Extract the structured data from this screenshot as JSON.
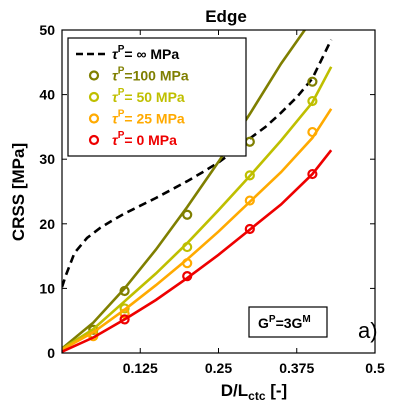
{
  "chart_data": {
    "type": "line",
    "title": "Edge",
    "xlabel": "D/L",
    "xlabel_sub": "ctc",
    "xlabel_unit": " [-]",
    "ylabel": "CRSS [MPa]",
    "xlim": [
      0.0,
      0.5
    ],
    "ylim": [
      0,
      50
    ],
    "xticks": [
      0.125,
      0.25,
      0.375,
      0.5
    ],
    "xtick_labels": [
      "0.125",
      "0.25",
      "0.375",
      "0.5"
    ],
    "yticks": [
      0,
      10,
      20,
      30,
      40,
      50
    ],
    "ytick_labels": [
      "0",
      "10",
      "20",
      "30",
      "40",
      "50"
    ],
    "grid": false,
    "legend_position": "top-left",
    "panel_label": "a)",
    "annotation": {
      "base": "G",
      "sup1": "P",
      "mid": "=3G",
      "sup2": "M"
    },
    "series": [
      {
        "name": "∞ MPa",
        "label_prefix": "τ",
        "label_sup": "P",
        "label_rest": "=  ∞ MPa",
        "color": "#000000",
        "style": "dashed",
        "curve_x": [
          0.0,
          0.006,
          0.02,
          0.04,
          0.06,
          0.08,
          0.1,
          0.125,
          0.15,
          0.175,
          0.2,
          0.225,
          0.25,
          0.275,
          0.3,
          0.325,
          0.35,
          0.375,
          0.4,
          0.43
        ],
        "curve_y": [
          10.2,
          12.0,
          15.5,
          17.8,
          19.3,
          20.5,
          21.6,
          22.8,
          24.0,
          25.3,
          26.6,
          28.0,
          29.5,
          31.3,
          33.2,
          35.0,
          37.2,
          39.6,
          42.5,
          48.5
        ],
        "points_x": [],
        "points_y": []
      },
      {
        "name": "100 MPa",
        "label_prefix": "τ",
        "label_sup": "P",
        "label_rest": "=100 MPa",
        "color": "#7f7f00",
        "style": "solid",
        "curve_x": [
          0.0,
          0.05,
          0.1,
          0.15,
          0.2,
          0.25,
          0.3,
          0.35,
          0.395
        ],
        "curve_y": [
          0.7,
          4.7,
          10.0,
          16.0,
          22.6,
          29.6,
          37.0,
          44.8,
          51.0
        ],
        "points_x": [
          0.05,
          0.1,
          0.2,
          0.3,
          0.4
        ],
        "points_y": [
          3.6,
          9.6,
          21.4,
          32.7,
          42.0
        ]
      },
      {
        "name": "50 MPa",
        "label_prefix": "τ",
        "label_sup": "P",
        "label_rest": "=  50 MPa",
        "color": "#bfbf00",
        "style": "solid",
        "curve_x": [
          0.0,
          0.05,
          0.1,
          0.15,
          0.2,
          0.25,
          0.3,
          0.35,
          0.4,
          0.43
        ],
        "curve_y": [
          0.6,
          3.7,
          8.0,
          12.3,
          17.0,
          22.1,
          27.4,
          32.9,
          38.8,
          44.3
        ],
        "points_x": [
          0.05,
          0.1,
          0.2,
          0.3,
          0.4
        ],
        "points_y": [
          3.0,
          6.9,
          16.4,
          27.5,
          39.0
        ]
      },
      {
        "name": "25 MPa",
        "label_prefix": "τ",
        "label_sup": "P",
        "label_rest": "=  25 MPa",
        "color": "#ffaa00",
        "style": "solid",
        "curve_x": [
          0.0,
          0.05,
          0.1,
          0.15,
          0.2,
          0.25,
          0.3,
          0.35,
          0.4,
          0.43
        ],
        "curve_y": [
          0.5,
          3.2,
          6.7,
          10.5,
          14.5,
          18.8,
          23.4,
          28.0,
          33.3,
          37.8
        ],
        "points_x": [
          0.05,
          0.1,
          0.2,
          0.3,
          0.4
        ],
        "points_y": [
          2.6,
          6.1,
          13.9,
          23.6,
          34.2
        ]
      },
      {
        "name": "0 MPa",
        "label_prefix": "τ",
        "label_sup": "P",
        "label_rest": "=    0 MPa",
        "color": "#ee0000",
        "style": "solid",
        "curve_x": [
          0.0,
          0.05,
          0.1,
          0.15,
          0.2,
          0.25,
          0.3,
          0.35,
          0.4,
          0.43
        ],
        "curve_y": [
          0.2,
          2.4,
          5.2,
          8.2,
          11.6,
          15.2,
          19.1,
          23.0,
          27.7,
          31.4
        ],
        "points_x": [
          0.1,
          0.2,
          0.3,
          0.4
        ],
        "points_y": [
          5.2,
          11.9,
          19.2,
          27.7
        ]
      }
    ]
  }
}
